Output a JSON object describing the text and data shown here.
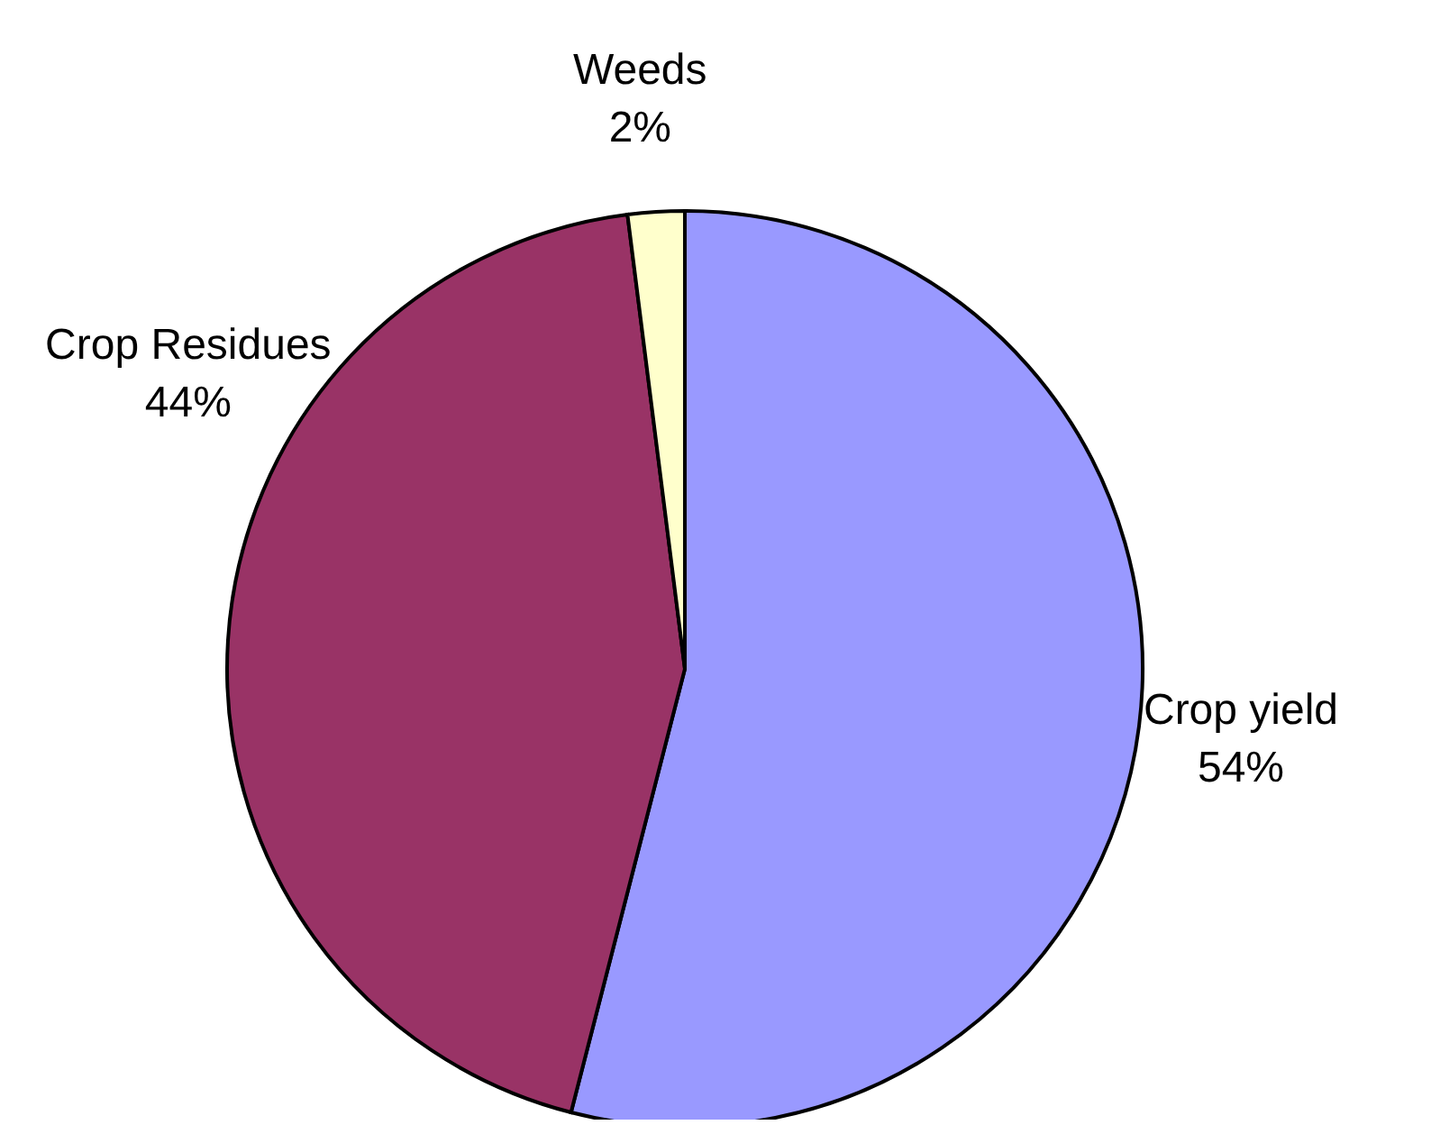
{
  "chart_data": {
    "type": "pie",
    "categories": [
      "Crop yield",
      "Crop Residues",
      "Weeds"
    ],
    "values": [
      54,
      44,
      2
    ],
    "colors": [
      "#9999ff",
      "#993366",
      "#ffffcc"
    ],
    "value_labels": [
      "54%",
      "44%",
      "2%"
    ],
    "legend": false
  }
}
